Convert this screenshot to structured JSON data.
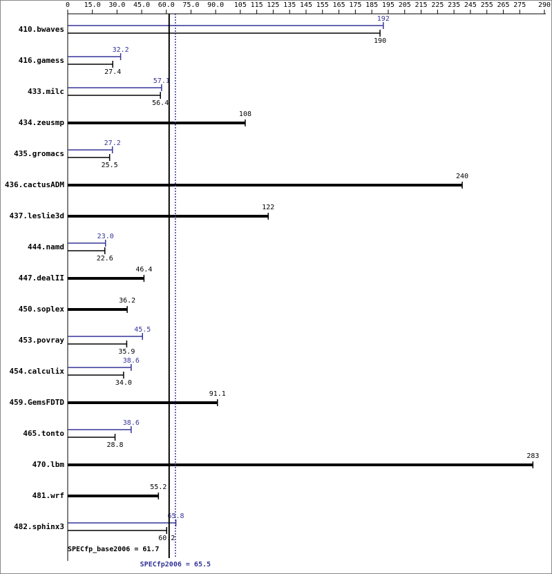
{
  "chart_data": {
    "type": "bar",
    "orientation": "horizontal",
    "categories": [
      "410.bwaves",
      "416.gamess",
      "433.milc",
      "434.zeusmp",
      "435.gromacs",
      "436.cactusADM",
      "437.leslie3d",
      "444.namd",
      "447.dealII",
      "450.soplex",
      "453.povray",
      "454.calculix",
      "459.GemsFDTD",
      "465.tonto",
      "470.lbm",
      "481.wrf",
      "482.sphinx3"
    ],
    "series": [
      {
        "color": "#333399",
        "values": [
          192,
          32.2,
          57.1,
          null,
          27.2,
          null,
          null,
          23.0,
          null,
          null,
          45.5,
          38.6,
          null,
          38.6,
          null,
          null,
          65.8
        ],
        "value_labels": [
          "192",
          "32.2",
          "57.1",
          null,
          "27.2",
          null,
          null,
          "23.0",
          null,
          null,
          "45.5",
          "38.6",
          null,
          "38.6",
          null,
          null,
          "65.8"
        ]
      },
      {
        "color": "#000000",
        "values": [
          190,
          27.4,
          56.4,
          108,
          25.5,
          240,
          122,
          22.6,
          46.4,
          36.2,
          35.9,
          34.0,
          91.1,
          28.8,
          283,
          55.2,
          60.2
        ],
        "value_labels": [
          "190",
          "27.4",
          "56.4",
          "108",
          "25.5",
          "240",
          "122",
          "22.6",
          "46.4",
          "36.2",
          "35.9",
          "34.0",
          "91.1",
          "28.8",
          "283",
          "55.2",
          "60.2"
        ]
      }
    ],
    "xlim": [
      0,
      290
    ],
    "xticks": [
      0,
      {
        "value": 15,
        "label": "15.0"
      },
      {
        "value": 30,
        "label": "30.0"
      },
      {
        "value": 45,
        "label": "45.0"
      },
      {
        "value": 60,
        "label": "60.0"
      },
      {
        "value": 75,
        "label": "75.0"
      },
      {
        "value": 90,
        "label": "90.0"
      },
      105,
      115,
      125,
      135,
      145,
      155,
      165,
      175,
      185,
      195,
      205,
      215,
      225,
      235,
      245,
      255,
      265,
      275,
      290
    ],
    "reference_lines": [
      {
        "value": 61.7,
        "label": "SPECfp_base2006 = 61.7",
        "color": "#000000",
        "dashed": false
      },
      {
        "value": 65.5,
        "label": "SPECfp2006 = 65.5",
        "color": "#333399",
        "dashed": true
      }
    ]
  }
}
